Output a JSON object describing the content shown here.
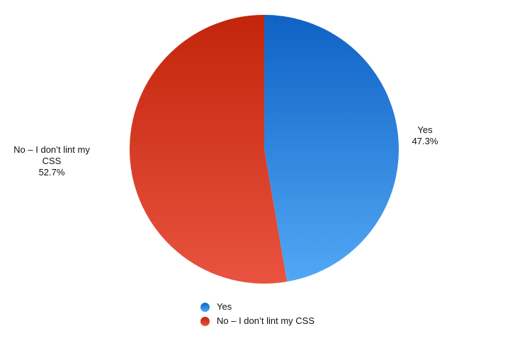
{
  "chart_data": {
    "type": "pie",
    "title": "",
    "slices": [
      {
        "label": "Yes",
        "value": 47.3,
        "value_label": "47.3%",
        "color": "#3a8fe6",
        "gradient": [
          "#0f62c4",
          "#52a8f5"
        ]
      },
      {
        "label": "No – I don’t lint my CSS",
        "slice_label": "No – I don’t lint my CSS",
        "value": 52.7,
        "value_label": "52.7%",
        "color": "#e0452c",
        "gradient": [
          "#c2250b",
          "#e9533f"
        ]
      }
    ],
    "start_angle_deg": 0,
    "direction": "clockwise",
    "legend": {
      "position": "bottom",
      "items": [
        "Yes",
        "No – I don’t lint my CSS"
      ]
    }
  }
}
